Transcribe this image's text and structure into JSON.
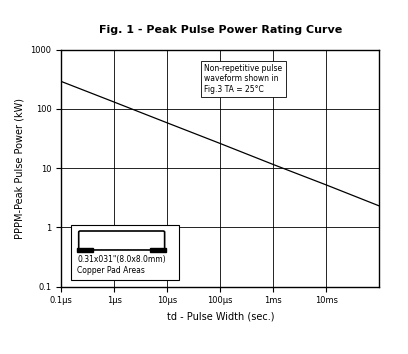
{
  "chart_data": {
    "type": "line",
    "title": "Fig. 1 - Peak Pulse Power Rating Curve",
    "x_label": "td - Pulse Width (sec.)",
    "y_label": "PPPM-Peak Pulse Power (kW)",
    "x": [
      1e-07,
      1e-06,
      1e-05,
      0.0001,
      0.001,
      0.01,
      0.1
    ],
    "values": [
      290,
      130,
      58,
      26,
      11.5,
      5.2,
      2.3
    ],
    "color": "#000000",
    "log": true,
    "grid": true,
    "xlim": [
      1e-07,
      0.1
    ],
    "ylim": [
      0.1,
      1000
    ],
    "xticks": [
      {
        "value": 1e-07,
        "label": "0.1μs"
      },
      {
        "value": 1e-06,
        "label": "1μs"
      },
      {
        "value": 1e-05,
        "label": "10μs"
      },
      {
        "value": 0.0001,
        "label": "100μs"
      },
      {
        "value": 0.001,
        "label": "1ms"
      },
      {
        "value": 0.01,
        "label": "10ms"
      }
    ],
    "yticks": [
      0.1,
      1,
      10,
      100,
      1000
    ],
    "annotations": [
      "Non-repetitive pulse\nwaveform shown in\nFig.3 TA = 25°C",
      "0.31x031\"(8.0x8.0mm)\nCopper Pad Areas"
    ]
  }
}
